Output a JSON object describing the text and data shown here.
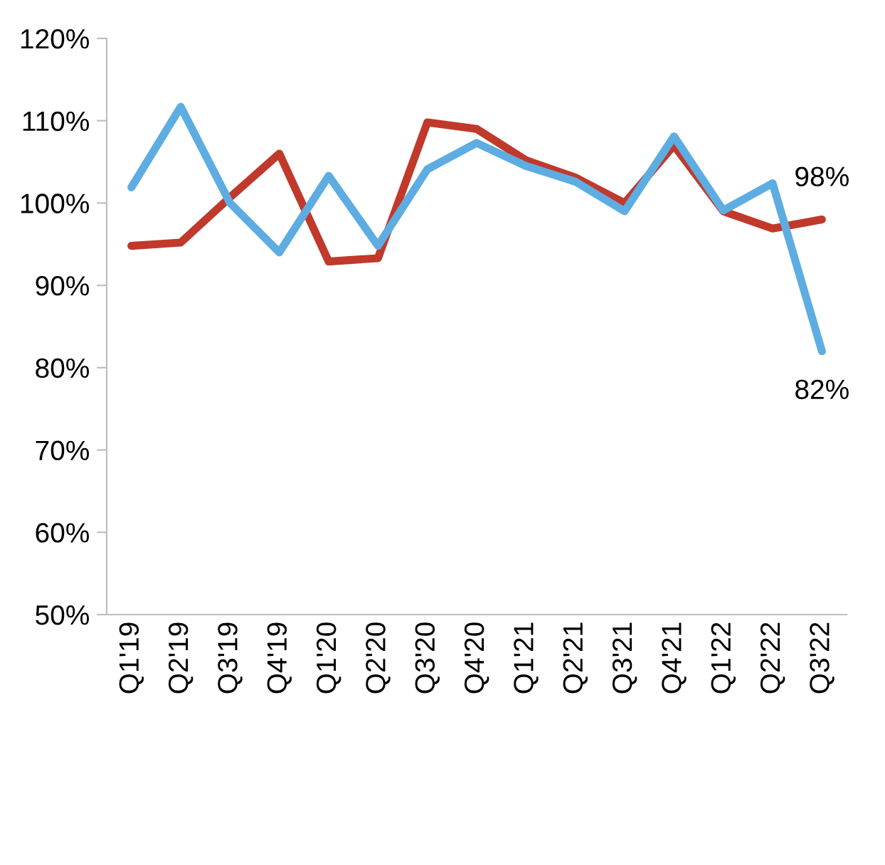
{
  "chart_data": {
    "type": "line",
    "categories": [
      "Q1'19",
      "Q2'19",
      "Q3'19",
      "Q4'19",
      "Q1'20",
      "Q2'20",
      "Q3'20",
      "Q4'20",
      "Q1'21",
      "Q2'21",
      "Q3'21",
      "Q4'21",
      "Q1'22",
      "Q2'22",
      "Q3'22"
    ],
    "series": [
      {
        "color": "#c0392b",
        "values": [
          94.8,
          95.2,
          100.7,
          106,
          92.9,
          93.3,
          109.8,
          109,
          105.2,
          103.1,
          100,
          107,
          99,
          96.9,
          98
        ],
        "value_labels": [
          null,
          null,
          null,
          null,
          null,
          null,
          null,
          null,
          null,
          null,
          null,
          null,
          null,
          null,
          "98%"
        ]
      },
      {
        "color": "#5dade2",
        "values": [
          101.9,
          111.7,
          100,
          94,
          103.3,
          94.8,
          104.1,
          107.3,
          104.5,
          102.6,
          99,
          108.1,
          99.1,
          102.4,
          82
        ],
        "value_labels": [
          null,
          null,
          null,
          null,
          null,
          null,
          null,
          null,
          null,
          null,
          null,
          null,
          null,
          null,
          "82%"
        ]
      }
    ],
    "ylim": [
      50,
      120
    ],
    "yticks": [
      {
        "value": 50,
        "label": "50%"
      },
      {
        "value": 60,
        "label": "60%"
      },
      {
        "value": 70,
        "label": "70%"
      },
      {
        "value": 80,
        "label": "80%"
      },
      {
        "value": 90,
        "label": "90%"
      },
      {
        "value": 100,
        "label": "100%"
      },
      {
        "value": 110,
        "label": "110%"
      },
      {
        "value": 120,
        "label": "120%"
      }
    ],
    "grid": false,
    "marker": "none",
    "line_style": "solid"
  }
}
